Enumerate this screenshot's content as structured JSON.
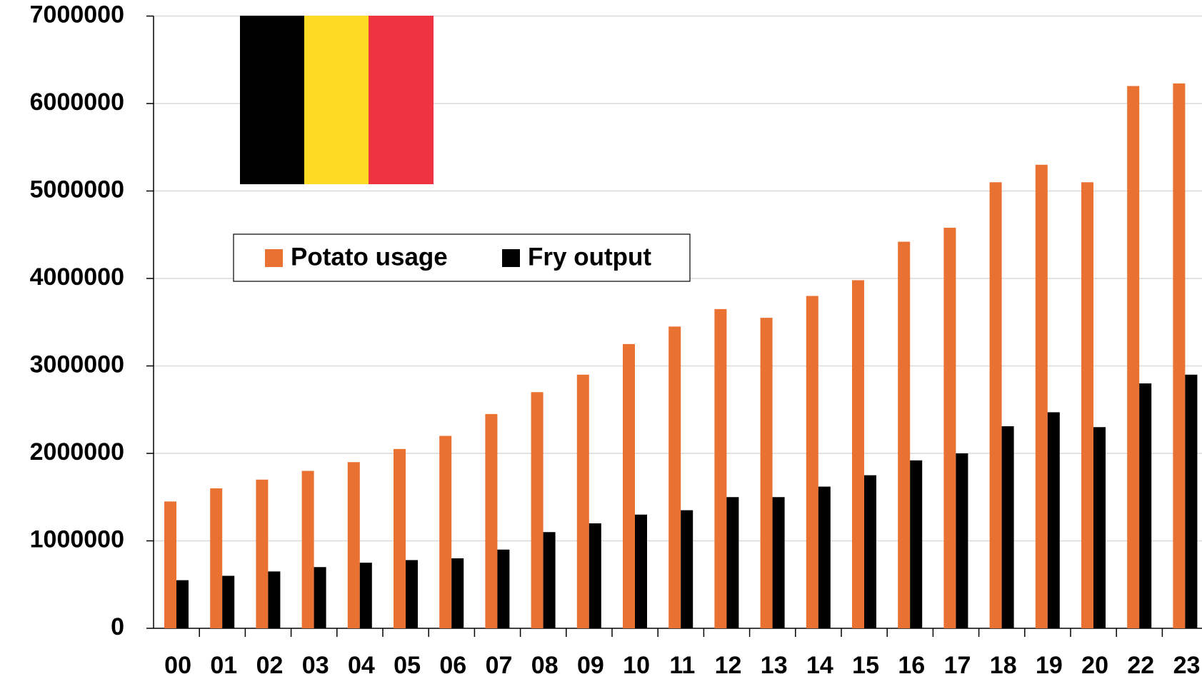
{
  "chart_data": {
    "type": "bar",
    "categories": [
      "00",
      "01",
      "02",
      "03",
      "04",
      "05",
      "06",
      "07",
      "08",
      "09",
      "10",
      "11",
      "12",
      "13",
      "14",
      "15",
      "16",
      "17",
      "18",
      "19",
      "20",
      "22",
      "23"
    ],
    "series": [
      {
        "name": "Potato usage",
        "color": "#e97132",
        "values": [
          1450000,
          1600000,
          1700000,
          1800000,
          1900000,
          2050000,
          2200000,
          2450000,
          2700000,
          2900000,
          3250000,
          3450000,
          3650000,
          3550000,
          3800000,
          3980000,
          4420000,
          4580000,
          5100000,
          5300000,
          5100000,
          6200000,
          6230000
        ]
      },
      {
        "name": "Fry output",
        "color": "#000000",
        "values": [
          550000,
          600000,
          650000,
          700000,
          750000,
          780000,
          800000,
          900000,
          1100000,
          1200000,
          1300000,
          1350000,
          1500000,
          1500000,
          1620000,
          1750000,
          1920000,
          2000000,
          2310000,
          2470000,
          2300000,
          2800000,
          2900000
        ]
      }
    ],
    "ylim": [
      0,
      7000000
    ],
    "yticks": [
      0,
      1000000,
      2000000,
      3000000,
      4000000,
      5000000,
      6000000,
      7000000
    ],
    "grid": true
  }
}
